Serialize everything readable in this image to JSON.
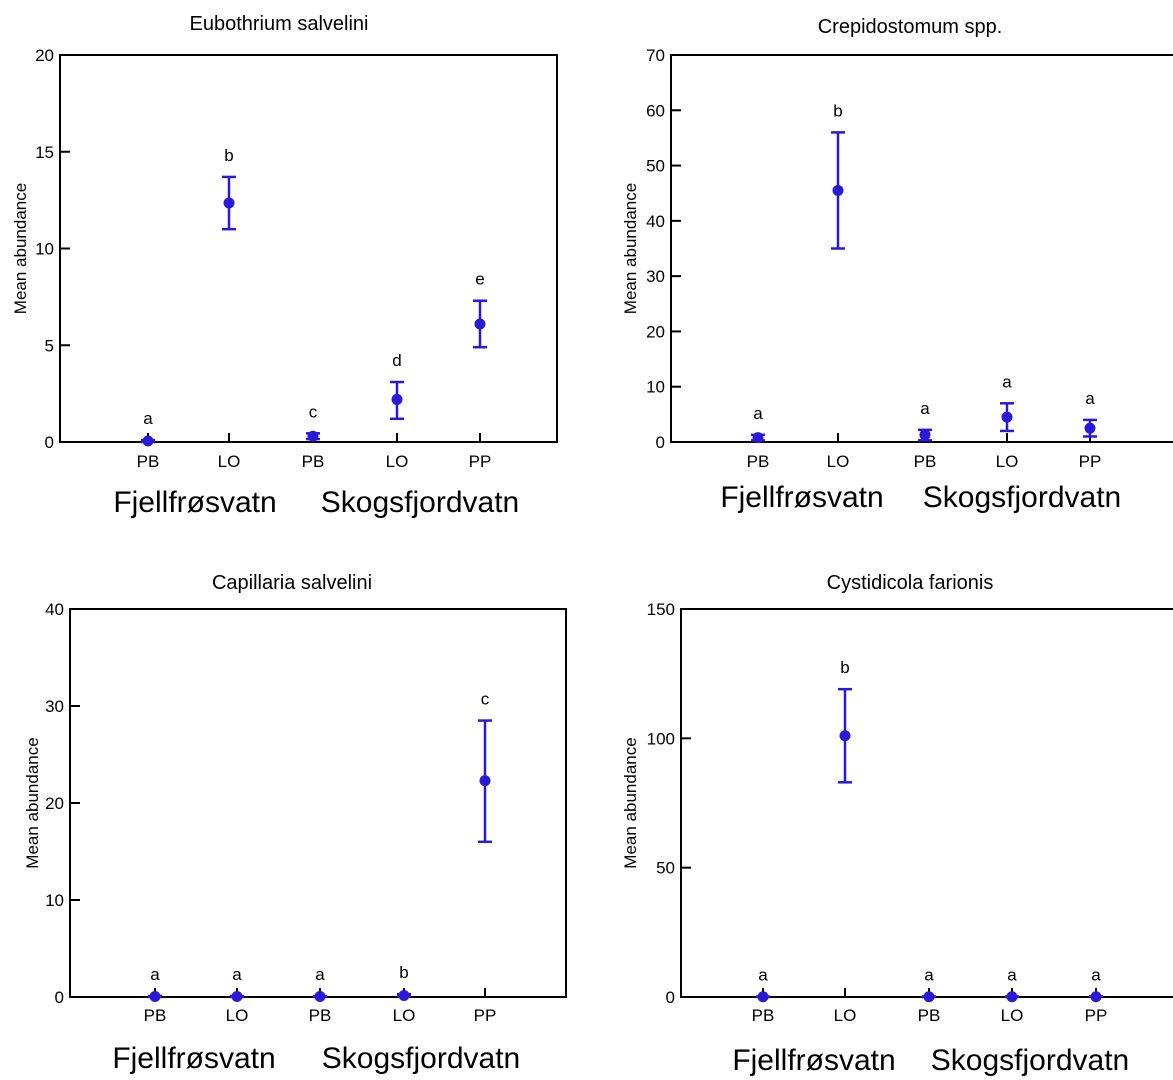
{
  "chart_data": [
    {
      "type": "scatter",
      "title": "Eubothrium salvelini",
      "ylabel": "Mean abundance",
      "xlabel": "",
      "ylim": [
        0,
        20
      ],
      "yticks": [
        0,
        5,
        10,
        15,
        20
      ],
      "categories": [
        "PB",
        "LO",
        "PB",
        "LO",
        "PP"
      ],
      "groups": [
        "Fjellfrøsvatn",
        "Skogsfjordvatn"
      ],
      "values": [
        0.05,
        12.35,
        0.3,
        2.2,
        6.1
      ],
      "lower": [
        0.0,
        11.0,
        0.15,
        1.2,
        4.9
      ],
      "upper": [
        0.1,
        13.7,
        0.45,
        3.1,
        7.3
      ],
      "letters": [
        "a",
        "b",
        "c",
        "d",
        "e"
      ],
      "color": "#2a1ad6",
      "grid": false
    },
    {
      "type": "scatter",
      "title": "Crepidostomum spp.",
      "ylabel": "Mean abundance",
      "xlabel": "",
      "ylim": [
        0,
        70
      ],
      "yticks": [
        0,
        10,
        20,
        30,
        40,
        50,
        60,
        70
      ],
      "categories": [
        "PB",
        "LO",
        "PB",
        "LO",
        "PP"
      ],
      "groups": [
        "Fjellfrøsvatn",
        "Skogsfjordvatn"
      ],
      "values": [
        0.8,
        45.5,
        1.3,
        4.5,
        2.5
      ],
      "lower": [
        0.3,
        35.0,
        0.3,
        2.0,
        1.0
      ],
      "upper": [
        1.3,
        56.0,
        2.2,
        7.0,
        4.0
      ],
      "letters": [
        "a",
        "b",
        "a",
        "a",
        "a"
      ],
      "color": "#2a1ad6",
      "grid": false
    },
    {
      "type": "scatter",
      "title": "Capillaria salvelini",
      "ylabel": "Mean abundance",
      "xlabel": "",
      "ylim": [
        0,
        40
      ],
      "yticks": [
        0,
        10,
        20,
        30,
        40
      ],
      "categories": [
        "PB",
        "LO",
        "PB",
        "LO",
        "PP"
      ],
      "groups": [
        "Fjellfrøsvatn",
        "Skogsfjordvatn"
      ],
      "values": [
        0.05,
        0.05,
        0.05,
        0.15,
        22.3
      ],
      "lower": [
        0.0,
        0.0,
        0.0,
        0.05,
        16.0
      ],
      "upper": [
        0.1,
        0.1,
        0.1,
        0.3,
        28.5
      ],
      "letters": [
        "a",
        "a",
        "a",
        "b",
        "c"
      ],
      "color": "#2a1ad6",
      "grid": false
    },
    {
      "type": "scatter",
      "title": "Cystidicola farionis",
      "ylabel": "Mean abundance",
      "xlabel": "",
      "ylim": [
        0,
        150
      ],
      "yticks": [
        0,
        50,
        100,
        150
      ],
      "categories": [
        "PB",
        "LO",
        "PB",
        "LO",
        "PP"
      ],
      "groups": [
        "Fjellfrøsvatn",
        "Skogsfjordvatn"
      ],
      "values": [
        0.1,
        101.0,
        0.1,
        0.1,
        0.1
      ],
      "lower": [
        0.0,
        83.0,
        0.0,
        0.0,
        0.0
      ],
      "upper": [
        0.2,
        119.0,
        0.2,
        0.2,
        0.2
      ],
      "letters": [
        "a",
        "b",
        "a",
        "a",
        "a"
      ],
      "color": "#2a1ad6",
      "grid": false
    }
  ]
}
